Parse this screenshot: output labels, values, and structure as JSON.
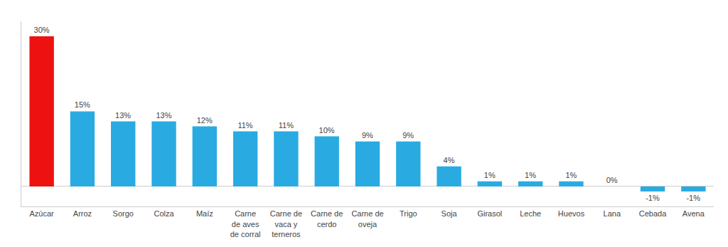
{
  "chart_data": {
    "type": "bar",
    "categories": [
      "Azúcar",
      "Arroz",
      "Sorgo",
      "Colza",
      "Maíz",
      "Carne\nde aves\nde corral",
      "Carne de\nvaca y\nterneros",
      "Carne de\ncerdo",
      "Carne de\noveja",
      "Trigo",
      "Soja",
      "Girasol",
      "Leche",
      "Huevos",
      "Lana",
      "Cebada",
      "Avena"
    ],
    "values": [
      30,
      15,
      13,
      13,
      12,
      11,
      11,
      10,
      9,
      9,
      4,
      1,
      1,
      1,
      0,
      -1,
      -1
    ],
    "value_labels": [
      "30%",
      "15%",
      "13%",
      "13%",
      "12%",
      "11%",
      "11%",
      "10%",
      "9%",
      "9%",
      "4%",
      "1%",
      "1%",
      "1%",
      "0%",
      "-1%",
      "-1%"
    ],
    "colors": [
      "#ee1111",
      "#29abe2",
      "#29abe2",
      "#29abe2",
      "#29abe2",
      "#29abe2",
      "#29abe2",
      "#29abe2",
      "#29abe2",
      "#29abe2",
      "#29abe2",
      "#29abe2",
      "#29abe2",
      "#29abe2",
      "#29abe2",
      "#29abe2",
      "#29abe2"
    ],
    "ylim": [
      -4,
      33
    ],
    "data_labels": true,
    "tick_labels": "x",
    "grid": false
  }
}
